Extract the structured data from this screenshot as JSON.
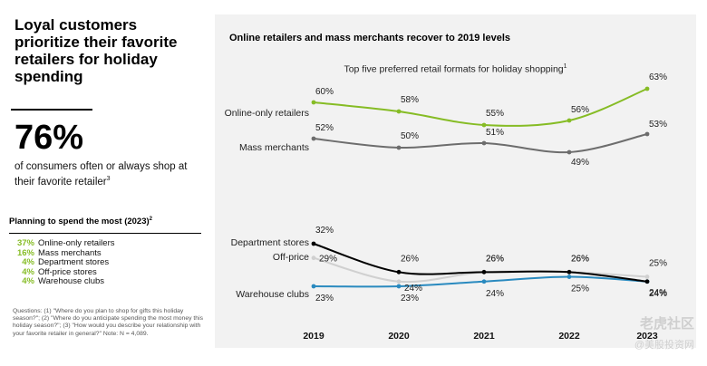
{
  "headline": "Loyal customers prioritize their favorite retailers for holiday spending",
  "stat": {
    "value": "76%",
    "text": "of consumers often or always shop at their favorite retailer",
    "footnote": "3"
  },
  "planning": {
    "title": "Planning to spend the most (2023)",
    "footnote": "2",
    "items": [
      {
        "pct": "37%",
        "label": "Online-only retailers"
      },
      {
        "pct": "16%",
        "label": "Mass merchants"
      },
      {
        "pct": "4%",
        "label": "Department stores"
      },
      {
        "pct": "4%",
        "label": "Off-price stores"
      },
      {
        "pct": "4%",
        "label": "Warehouse clubs"
      }
    ]
  },
  "notes": "Questions: (1) \"Where do you plan to shop for gifts this holiday season?\"; (2) \"Where do you anticipate spending the most money this holiday season?\"; (3) \"How would you describe your relationship with your favorite retailer in general?\" Note: N = 4,089.",
  "watermark": {
    "line1": "老虎社区",
    "line2": "@美股投资网"
  },
  "chart_data": {
    "type": "line",
    "title": "Online retailers and mass merchants recover to 2019 levels",
    "subtitle": "Top five preferred retail formats for holiday shopping",
    "subtitle_footnote": "1",
    "categories": [
      "2019",
      "2020",
      "2021",
      "2022",
      "2023"
    ],
    "series": [
      {
        "name": "Online-only retailers",
        "values": [
          60,
          58,
          55,
          56,
          63
        ],
        "color": "#86bc25"
      },
      {
        "name": "Mass merchants",
        "values": [
          52,
          50,
          51,
          49,
          53
        ],
        "color": "#6d6d6d"
      },
      {
        "name": "Department stores",
        "values": [
          32,
          26,
          26,
          26,
          24
        ],
        "color": "#000000"
      },
      {
        "name": "Off-price",
        "values": [
          29,
          24,
          26,
          26,
          25
        ],
        "color": "#d0d0d0"
      },
      {
        "name": "Warehouse clubs",
        "values": [
          23,
          23,
          24,
          25,
          24
        ],
        "color": "#2a8abf"
      }
    ],
    "value_suffix": "%",
    "grid": false,
    "legend": "inline-left"
  }
}
